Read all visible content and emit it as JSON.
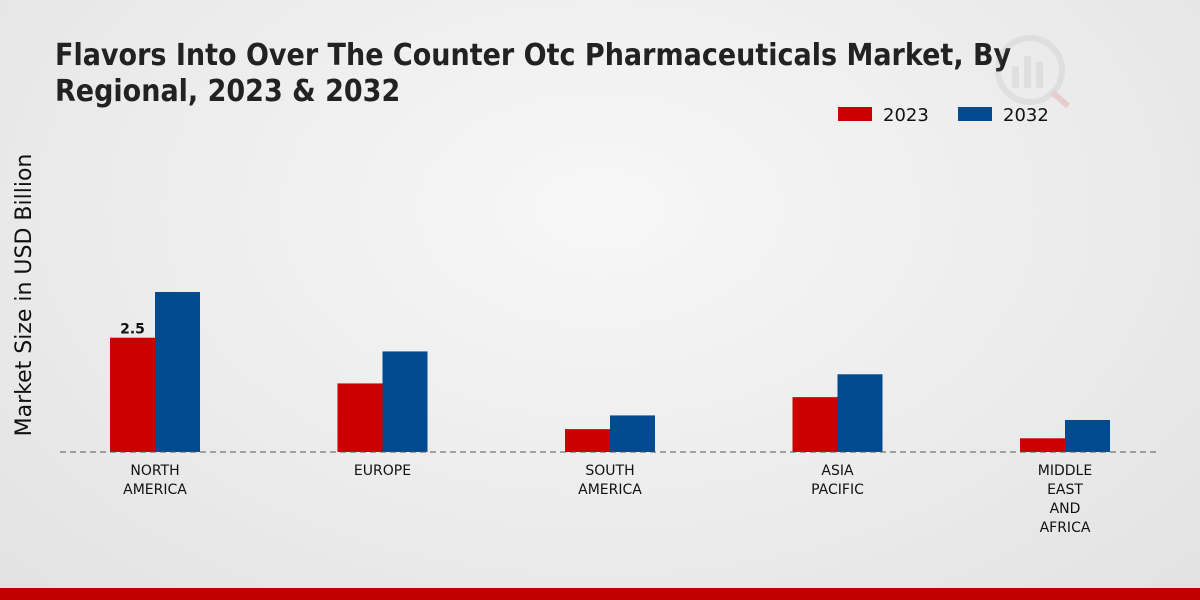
{
  "chart_data": {
    "type": "bar",
    "title": "Flavors Into Over The Counter Otc Pharmaceuticals Market, By Regional, 2023 & 2032",
    "xlabel": "",
    "ylabel": "Market Size in USD Billion",
    "categories": [
      [
        "NORTH",
        "AMERICA"
      ],
      [
        "EUROPE"
      ],
      [
        "SOUTH",
        "AMERICA"
      ],
      [
        "ASIA",
        "PACIFIC"
      ],
      [
        "MIDDLE",
        "EAST",
        "AND",
        "AFRICA"
      ]
    ],
    "series": [
      {
        "name": "2023",
        "color": "#cc0000",
        "values": [
          2.5,
          1.5,
          0.5,
          1.2,
          0.3
        ]
      },
      {
        "name": "2032",
        "color": "#004a8f",
        "values": [
          3.5,
          2.2,
          0.8,
          1.7,
          0.7
        ]
      }
    ],
    "data_labels": [
      {
        "series": 0,
        "index": 0,
        "text": "2.5"
      }
    ],
    "ylim": [
      0,
      7.7
    ],
    "grid": false,
    "legend_position": "top-right"
  }
}
